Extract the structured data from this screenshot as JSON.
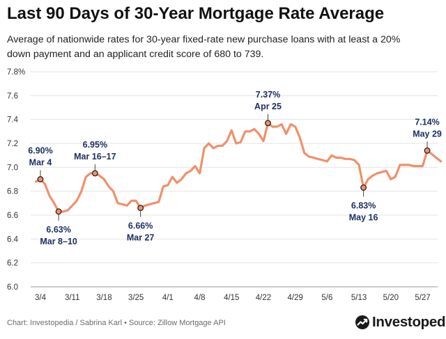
{
  "header": {
    "title": "Last 90 Days of 30-Year Mortgage Rate Average",
    "subtitle": "Average of nationwide rates for 30-year fixed-rate new purchase loans with at least a 20% down payment and an applicant credit score of 680 to 739."
  },
  "footer": {
    "credit": "Chart: Investopedia / Sabrina Karl • Source: Zillow Mortgage API",
    "brand": "Investopedia"
  },
  "colors": {
    "line": "#f0906a",
    "annotation_text": "#1e2f63",
    "grid": "#e3e3e3",
    "marker_fill": "#f0906a",
    "marker_stroke": "#222222"
  },
  "chart_data": {
    "type": "line",
    "ylim": [
      6.0,
      7.8
    ],
    "yticks": [
      "6.0",
      "6.2",
      "6.4",
      "6.6",
      "6.8",
      "7.0",
      "7.2",
      "7.4",
      "7.6",
      "7.8%"
    ],
    "ytick_values": [
      6.0,
      6.2,
      6.4,
      6.6,
      6.8,
      7.0,
      7.2,
      7.4,
      7.6,
      7.8
    ],
    "xticks": [
      "3/4",
      "3/11",
      "3/18",
      "3/25",
      "4/1",
      "4/8",
      "4/15",
      "4/22",
      "4/29",
      "5/6",
      "5/13",
      "5/20",
      "5/27"
    ],
    "xtick_days": [
      4,
      11,
      18,
      25,
      32,
      39,
      46,
      53,
      60,
      67,
      74,
      81,
      88
    ],
    "grid": "horizontal",
    "series": [
      {
        "x": [
          3,
          4,
          5,
          6,
          7,
          8,
          9,
          10,
          11,
          12,
          13,
          14,
          15,
          16,
          17,
          18,
          19,
          20,
          21,
          22,
          23,
          24,
          25,
          26,
          27,
          28,
          29,
          30,
          31,
          32,
          33,
          34,
          35,
          36,
          37,
          38,
          39,
          40,
          41,
          42,
          43,
          44,
          45,
          46,
          47,
          48,
          49,
          50,
          51,
          52,
          53,
          54,
          55,
          56,
          57,
          58,
          59,
          60,
          61,
          62,
          63,
          64,
          65,
          66,
          67,
          68,
          69,
          70,
          71,
          72,
          73,
          74,
          75,
          76,
          77,
          78,
          79,
          80,
          81,
          82,
          83,
          84,
          85,
          86,
          87,
          88,
          89,
          90,
          91,
          92
        ],
        "y": [
          6.88,
          6.9,
          6.86,
          6.76,
          6.7,
          6.63,
          6.63,
          6.64,
          6.68,
          6.72,
          6.8,
          6.92,
          6.95,
          6.95,
          6.93,
          6.9,
          6.84,
          6.8,
          6.7,
          6.69,
          6.68,
          6.72,
          6.72,
          6.66,
          6.68,
          6.69,
          6.7,
          6.71,
          6.84,
          6.85,
          6.92,
          6.87,
          6.9,
          6.95,
          6.97,
          7.01,
          6.95,
          7.16,
          7.2,
          7.16,
          7.18,
          7.18,
          7.22,
          7.31,
          7.2,
          7.21,
          7.3,
          7.3,
          7.32,
          7.28,
          7.22,
          7.37,
          7.34,
          7.34,
          7.36,
          7.28,
          7.36,
          7.34,
          7.25,
          7.12,
          7.09,
          7.08,
          7.07,
          7.06,
          7.05,
          7.1,
          7.08,
          7.08,
          7.07,
          7.07,
          7.06,
          7.02,
          6.83,
          6.9,
          6.93,
          6.95,
          6.96,
          6.97,
          6.9,
          6.92,
          7.02,
          7.02,
          7.02,
          7.01,
          7.01,
          7.01,
          7.14,
          7.11,
          7.08,
          7.05
        ]
      }
    ],
    "annotations": [
      {
        "value": "6.90%",
        "date": "Mar 4",
        "x": 4,
        "y": 6.9,
        "pos": "above"
      },
      {
        "value": "6.63%",
        "date": "Mar 8–10",
        "x": 8,
        "y": 6.63,
        "pos": "below"
      },
      {
        "value": "6.95%",
        "date": "Mar 16–17",
        "x": 16,
        "y": 6.95,
        "pos": "above"
      },
      {
        "value": "6.66%",
        "date": "Mar 27",
        "x": 26,
        "y": 6.66,
        "pos": "below"
      },
      {
        "value": "7.37%",
        "date": "Apr 25",
        "x": 54,
        "y": 7.37,
        "pos": "above"
      },
      {
        "value": "6.83%",
        "date": "May 16",
        "x": 75,
        "y": 6.83,
        "pos": "below"
      },
      {
        "value": "7.14%",
        "date": "May 29",
        "x": 89,
        "y": 7.14,
        "pos": "above"
      }
    ]
  }
}
